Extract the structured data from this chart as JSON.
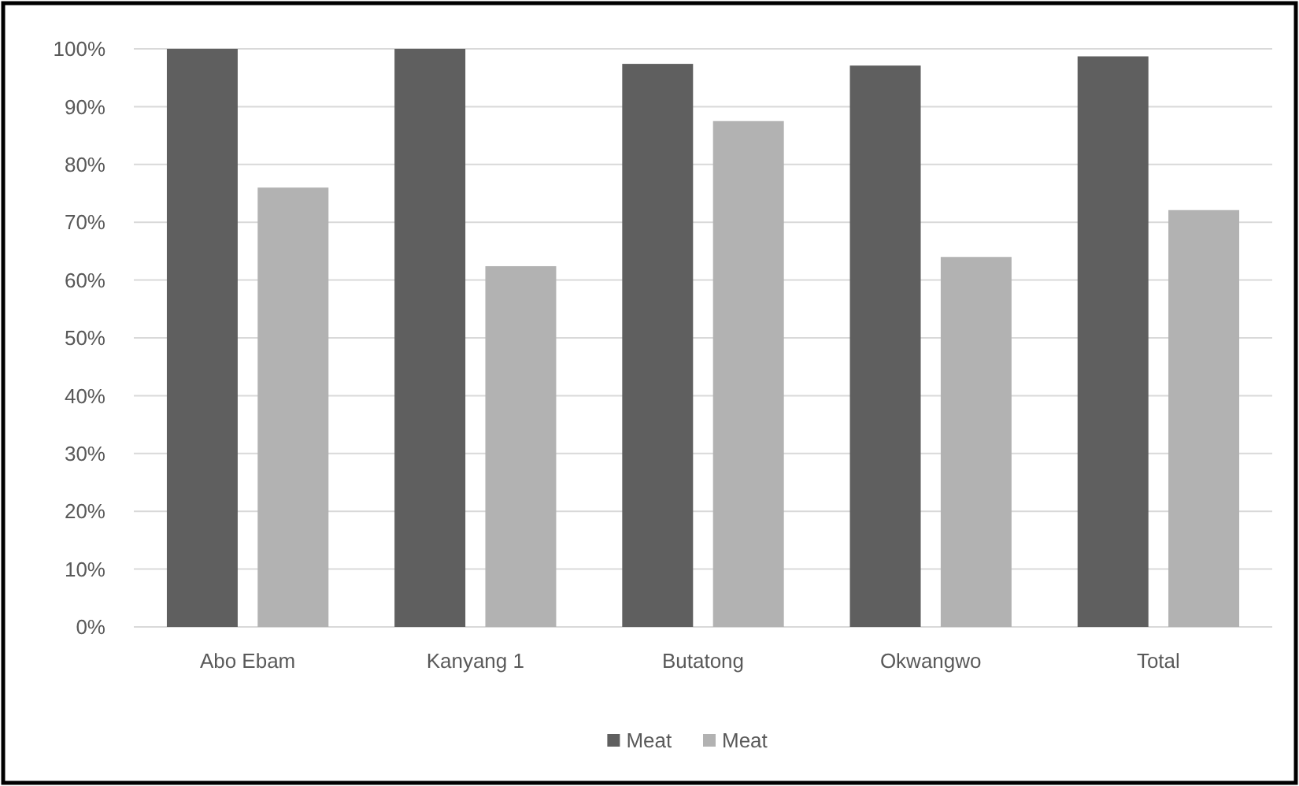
{
  "chart_data": {
    "type": "bar",
    "categories": [
      "Abo Ebam",
      "Kanyang 1",
      "Butatong",
      "Okwangwo",
      "Total"
    ],
    "series": [
      {
        "name": "Meat",
        "color": "#5f5f5f",
        "values": [
          100,
          100,
          97.4,
          97.1,
          98.7
        ]
      },
      {
        "name": "Meat",
        "color": "#b2b2b2",
        "values": [
          76,
          62.4,
          87.5,
          64,
          72.1
        ]
      }
    ],
    "ylim": [
      0,
      100
    ],
    "yticks": [
      {
        "value": 0,
        "label": "0%"
      },
      {
        "value": 10,
        "label": "10%"
      },
      {
        "value": 20,
        "label": "20%"
      },
      {
        "value": 30,
        "label": "30%"
      },
      {
        "value": 40,
        "label": "40%"
      },
      {
        "value": 50,
        "label": "50%"
      },
      {
        "value": 60,
        "label": "60%"
      },
      {
        "value": 70,
        "label": "70%"
      },
      {
        "value": 80,
        "label": "80%"
      },
      {
        "value": 90,
        "label": "90%"
      },
      {
        "value": 100,
        "label": "100%"
      }
    ],
    "grid": "y",
    "legend": "bottom"
  }
}
